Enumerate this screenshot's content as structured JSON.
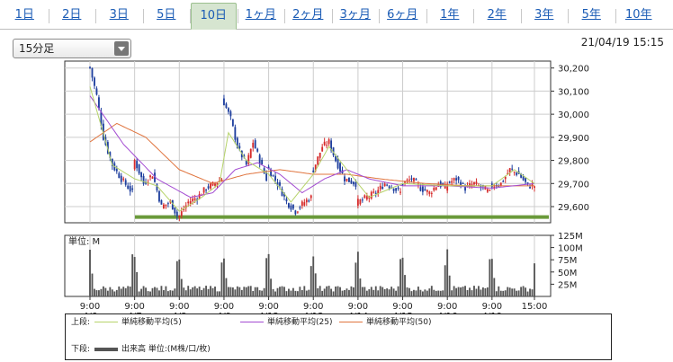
{
  "tabs": [
    {
      "label": "1日",
      "active": false
    },
    {
      "label": "2日",
      "active": false
    },
    {
      "label": "3日",
      "active": false
    },
    {
      "label": "5日",
      "active": false
    },
    {
      "label": "10日",
      "active": true
    },
    {
      "label": "1ヶ月",
      "active": false
    },
    {
      "label": "2ヶ月",
      "active": false
    },
    {
      "label": "3ヶ月",
      "active": false
    },
    {
      "label": "6ヶ月",
      "active": false
    },
    {
      "label": "1年",
      "active": false
    },
    {
      "label": "2年",
      "active": false
    },
    {
      "label": "3年",
      "active": false
    },
    {
      "label": "5年",
      "active": false
    },
    {
      "label": "10年",
      "active": false
    }
  ],
  "interval_select": {
    "value": "15分足"
  },
  "datetime": "21/04/19 15:15",
  "colors": {
    "up": "#d62b2b",
    "down": "#1f3f9e",
    "ma5": "#b6d36a",
    "ma25": "#a34bd2",
    "ma50": "#e0743e",
    "support": "#6a9a3a",
    "volume": "#555555",
    "grid": "#cccccc"
  },
  "chart_data": {
    "type": "candlestick",
    "price_axis": {
      "ticks": [
        "30,200",
        "30,100",
        "30,000",
        "29,900",
        "29,800",
        "29,700",
        "29,600"
      ],
      "ylim": [
        29530,
        30230
      ]
    },
    "volume_axis": {
      "unit_label": "単位: M",
      "ticks": [
        "125M",
        "100M",
        "75M",
        "50M",
        "25M"
      ],
      "ylim": [
        0,
        125
      ]
    },
    "x_ticks": [
      {
        "time": "9:00",
        "date": "4/6"
      },
      {
        "time": "9:00",
        "date": "4/7"
      },
      {
        "time": "9:00",
        "date": "4/8"
      },
      {
        "time": "9:00",
        "date": "4/9"
      },
      {
        "time": "9:00",
        "date": "4/12"
      },
      {
        "time": "9:00",
        "date": "4/13"
      },
      {
        "time": "9:00",
        "date": "4/14"
      },
      {
        "time": "9:00",
        "date": "4/15"
      },
      {
        "time": "9:00",
        "date": "4/16"
      },
      {
        "time": "9:00",
        "date": "4/19"
      },
      {
        "time": "15:00",
        "date": ""
      }
    ],
    "bars_per_day": 20,
    "close_anchors": [
      [
        0,
        30200
      ],
      [
        3,
        30080
      ],
      [
        6,
        29900
      ],
      [
        10,
        29780
      ],
      [
        14,
        29720
      ],
      [
        19,
        29660
      ],
      [
        20,
        29800
      ],
      [
        24,
        29700
      ],
      [
        28,
        29740
      ],
      [
        32,
        29600
      ],
      [
        36,
        29620
      ],
      [
        39,
        29560
      ],
      [
        40,
        29560
      ],
      [
        44,
        29620
      ],
      [
        48,
        29640
      ],
      [
        52,
        29680
      ],
      [
        56,
        29700
      ],
      [
        59,
        29720
      ],
      [
        60,
        30050
      ],
      [
        63,
        29980
      ],
      [
        66,
        29860
      ],
      [
        70,
        29780
      ],
      [
        73,
        29880
      ],
      [
        76,
        29800
      ],
      [
        79,
        29720
      ],
      [
        80,
        29760
      ],
      [
        84,
        29700
      ],
      [
        88,
        29620
      ],
      [
        92,
        29580
      ],
      [
        96,
        29620
      ],
      [
        99,
        29640
      ],
      [
        100,
        29760
      ],
      [
        104,
        29860
      ],
      [
        107,
        29880
      ],
      [
        110,
        29800
      ],
      [
        114,
        29720
      ],
      [
        119,
        29700
      ],
      [
        120,
        29620
      ],
      [
        124,
        29640
      ],
      [
        128,
        29660
      ],
      [
        132,
        29700
      ],
      [
        136,
        29680
      ],
      [
        139,
        29660
      ],
      [
        140,
        29700
      ],
      [
        144,
        29720
      ],
      [
        148,
        29680
      ],
      [
        152,
        29660
      ],
      [
        156,
        29700
      ],
      [
        159,
        29680
      ],
      [
        160,
        29700
      ],
      [
        164,
        29720
      ],
      [
        168,
        29680
      ],
      [
        172,
        29700
      ],
      [
        176,
        29680
      ],
      [
        179,
        29660
      ],
      [
        180,
        29690
      ],
      [
        184,
        29700
      ],
      [
        188,
        29760
      ],
      [
        192,
        29740
      ],
      [
        196,
        29690
      ],
      [
        199,
        29690
      ]
    ],
    "ma_anchors": {
      "ma5": [
        [
          0,
          30120
        ],
        [
          10,
          29780
        ],
        [
          20,
          29720
        ],
        [
          30,
          29690
        ],
        [
          40,
          29580
        ],
        [
          50,
          29640
        ],
        [
          58,
          29700
        ],
        [
          62,
          29920
        ],
        [
          70,
          29800
        ],
        [
          80,
          29740
        ],
        [
          90,
          29620
        ],
        [
          100,
          29740
        ],
        [
          107,
          29860
        ],
        [
          115,
          29760
        ],
        [
          125,
          29640
        ],
        [
          140,
          29700
        ],
        [
          160,
          29690
        ],
        [
          180,
          29690
        ],
        [
          190,
          29760
        ],
        [
          199,
          29700
        ]
      ],
      "ma25": [
        [
          0,
          30080
        ],
        [
          15,
          29870
        ],
        [
          30,
          29720
        ],
        [
          45,
          29640
        ],
        [
          55,
          29660
        ],
        [
          65,
          29760
        ],
        [
          75,
          29790
        ],
        [
          85,
          29740
        ],
        [
          95,
          29660
        ],
        [
          105,
          29720
        ],
        [
          115,
          29760
        ],
        [
          125,
          29720
        ],
        [
          140,
          29690
        ],
        [
          160,
          29690
        ],
        [
          180,
          29680
        ],
        [
          199,
          29700
        ]
      ],
      "ma50": [
        [
          0,
          29880
        ],
        [
          12,
          29960
        ],
        [
          25,
          29900
        ],
        [
          40,
          29760
        ],
        [
          55,
          29700
        ],
        [
          70,
          29740
        ],
        [
          85,
          29760
        ],
        [
          100,
          29740
        ],
        [
          115,
          29740
        ],
        [
          130,
          29720
        ],
        [
          150,
          29700
        ],
        [
          170,
          29690
        ],
        [
          199,
          29690
        ]
      ]
    },
    "support_level": 29555,
    "volume_pattern": {
      "open_spike": 75,
      "close_spike": 62,
      "base": 10,
      "max": 120
    }
  },
  "legend": {
    "upper_label": "上段:",
    "lower_label": "下段:",
    "upper_items": [
      {
        "label": "単純移動平均(5)"
      },
      {
        "label": "単純移動平均(25)"
      },
      {
        "label": "単純移動平均(50)"
      }
    ],
    "lower_item": {
      "label": "出来高 単位:(M株/口/枚)"
    }
  }
}
